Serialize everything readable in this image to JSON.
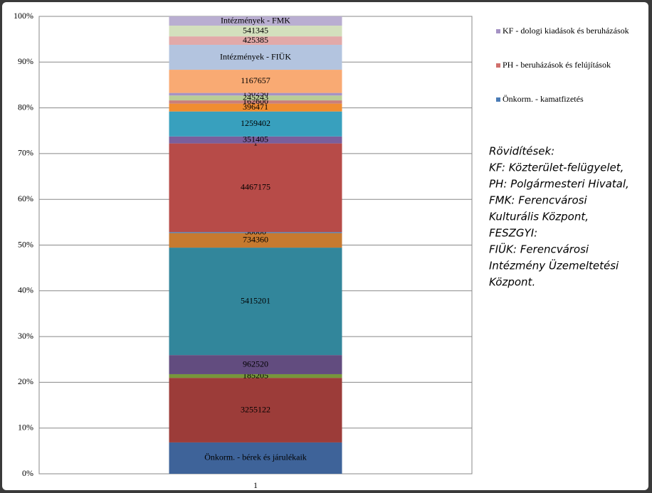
{
  "chart_data": {
    "type": "stacked100",
    "categories": [
      "1"
    ],
    "ylim": [
      0,
      100
    ],
    "yticks": [
      {
        "value": 0,
        "label": "0%"
      },
      {
        "value": 10,
        "label": "10%"
      },
      {
        "value": 20,
        "label": "20%"
      },
      {
        "value": 30,
        "label": "30%"
      },
      {
        "value": 40,
        "label": "40%"
      },
      {
        "value": 50,
        "label": "50%"
      },
      {
        "value": 60,
        "label": "60%"
      },
      {
        "value": 70,
        "label": "70%"
      },
      {
        "value": 80,
        "label": "80%"
      },
      {
        "value": 90,
        "label": "90%"
      },
      {
        "value": 100,
        "label": "100%"
      }
    ],
    "grid": true,
    "series": [
      {
        "name": "Önkorm. - bérek és járulékaik",
        "color": "#3e6399",
        "values": [
          1580000
        ]
      },
      {
        "color": "#9c3c39",
        "values": [
          3255122
        ]
      },
      {
        "color": "#77963b",
        "values": [
          185205
        ]
      },
      {
        "color": "#624c7f",
        "values": [
          962520
        ]
      },
      {
        "color": "#32869b",
        "values": [
          5415201
        ]
      },
      {
        "color": "#c77a30",
        "values": [
          734360
        ]
      },
      {
        "color": "#4a7cb6",
        "values": [
          50000
        ]
      },
      {
        "color": "#b74b48",
        "values": [
          4467175
        ]
      },
      {
        "color": "#93a9cf",
        "values": [
          1
        ]
      },
      {
        "color": "#7a5f9c",
        "values": [
          351405
        ]
      },
      {
        "color": "#38a0be",
        "values": [
          1259402
        ]
      },
      {
        "color": "#f08d31",
        "values": [
          396471
        ]
      },
      {
        "color": "#c97f7c",
        "values": [
          162600
        ]
      },
      {
        "color": "#b9cd96",
        "values": [
          245243
        ]
      },
      {
        "color": "#a593c4",
        "values": [
          130250
        ]
      },
      {
        "color": "#f9aa73",
        "values": [
          1167657
        ]
      },
      {
        "name": "Intézmények - FIÜK",
        "color": "#b3c4df",
        "values": [
          1257000
        ]
      },
      {
        "color": "#e2a9a8",
        "values": [
          425385
        ]
      },
      {
        "color": "#d3e0bd",
        "values": [
          541345
        ]
      },
      {
        "name": "Intézmények - FMK",
        "color": "#b9aed1",
        "values": [
          467000
        ]
      }
    ],
    "legend": [
      {
        "name": "KF - dologi kiadások és beruházások",
        "color": "#a593c4"
      },
      {
        "name": "PH - beruházások és felújítások",
        "color": "#d0706c"
      },
      {
        "name": "Önkorm. - kamatfizetés",
        "color": "#4a7cb6"
      }
    ],
    "annotation": [
      "Rövidítések:",
      "KF: Közterület-felügyelet,",
      "PH: Polgármesteri Hivatal,",
      "FMK: Ferencvárosi",
      "Kulturális Központ,",
      "FESZGYI:",
      "FIÜK: Ferencvárosi",
      "Intézmény Üzemeltetési",
      "Központ."
    ]
  }
}
